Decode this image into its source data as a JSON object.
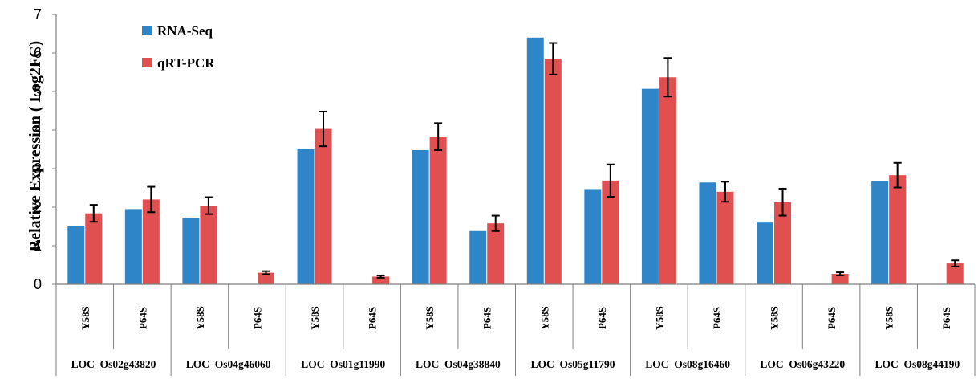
{
  "chart_data": {
    "type": "bar",
    "ylabel": "Relative Expression ( Log2FC)",
    "ylim": [
      0,
      7
    ],
    "yticks": [
      0,
      1,
      2,
      3,
      4,
      5,
      6,
      7
    ],
    "legend_position": "top-left",
    "grid": false,
    "categories": [
      "Y58S",
      "P64S",
      "Y58S",
      "P64S",
      "Y58S",
      "P64S",
      "Y58S",
      "P64S",
      "Y58S",
      "P64S",
      "Y58S",
      "P64S",
      "Y58S",
      "P64S",
      "Y58S",
      "P64S"
    ],
    "groups": [
      "LOC_Os02g43820",
      "LOC_Os04g46060",
      "LOC_Os01g11990",
      "LOC_Os04g38840",
      "LOC_Os05g11790",
      "LOC_Os08g16460",
      "LOC_Os06g43220",
      "LOC_Os08g44190"
    ],
    "series": [
      {
        "name": "RNA-Seq",
        "color": "#2e86c9",
        "values": [
          1.52,
          1.95,
          1.73,
          0,
          3.5,
          0,
          3.48,
          1.38,
          6.4,
          2.47,
          5.07,
          2.64,
          1.6,
          0,
          2.68,
          0
        ]
      },
      {
        "name": "qRT-PCR",
        "color": "#e05050",
        "values": [
          1.84,
          2.2,
          2.04,
          0.3,
          4.03,
          0.2,
          3.83,
          1.58,
          5.85,
          2.69,
          5.37,
          2.4,
          2.13,
          0.27,
          2.83,
          0.54
        ],
        "errors": [
          0.22,
          0.33,
          0.22,
          0.04,
          0.45,
          0.03,
          0.35,
          0.2,
          0.41,
          0.42,
          0.5,
          0.26,
          0.35,
          0.04,
          0.32,
          0.08
        ]
      }
    ]
  }
}
